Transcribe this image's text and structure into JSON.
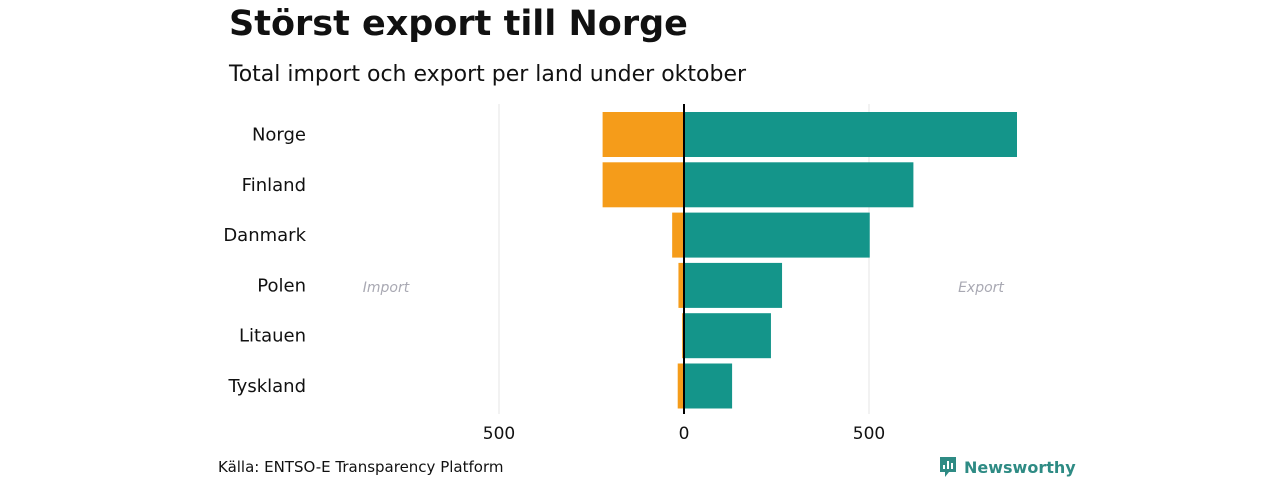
{
  "title": "Störst export till Norge",
  "subtitle": "Total import och export per land under oktober",
  "source": "Källa: ENTSO-E Transparency Platform",
  "brand": "Newsworthy",
  "colors": {
    "import": "#f59c1a",
    "export": "#14958a",
    "grid": "#e5e5e5",
    "axis": "#000000",
    "side_label": "#a9a9b3"
  },
  "chart_data": {
    "type": "bar",
    "orientation": "horizontal",
    "categories": [
      "Norge",
      "Finland",
      "Danmark",
      "Polen",
      "Litauen",
      "Tyskland"
    ],
    "series": [
      {
        "name": "Import",
        "values": [
          -220,
          -220,
          -32,
          -15,
          -5,
          -17
        ]
      },
      {
        "name": "Export",
        "values": [
          900,
          620,
          502,
          265,
          235,
          130
        ]
      }
    ],
    "xlim": [
      -1000,
      1000
    ],
    "ticks": [
      -500,
      0,
      500
    ],
    "tick_labels": [
      "500",
      "0",
      "500"
    ],
    "side_labels": {
      "import": "Import",
      "export": "Export"
    }
  }
}
